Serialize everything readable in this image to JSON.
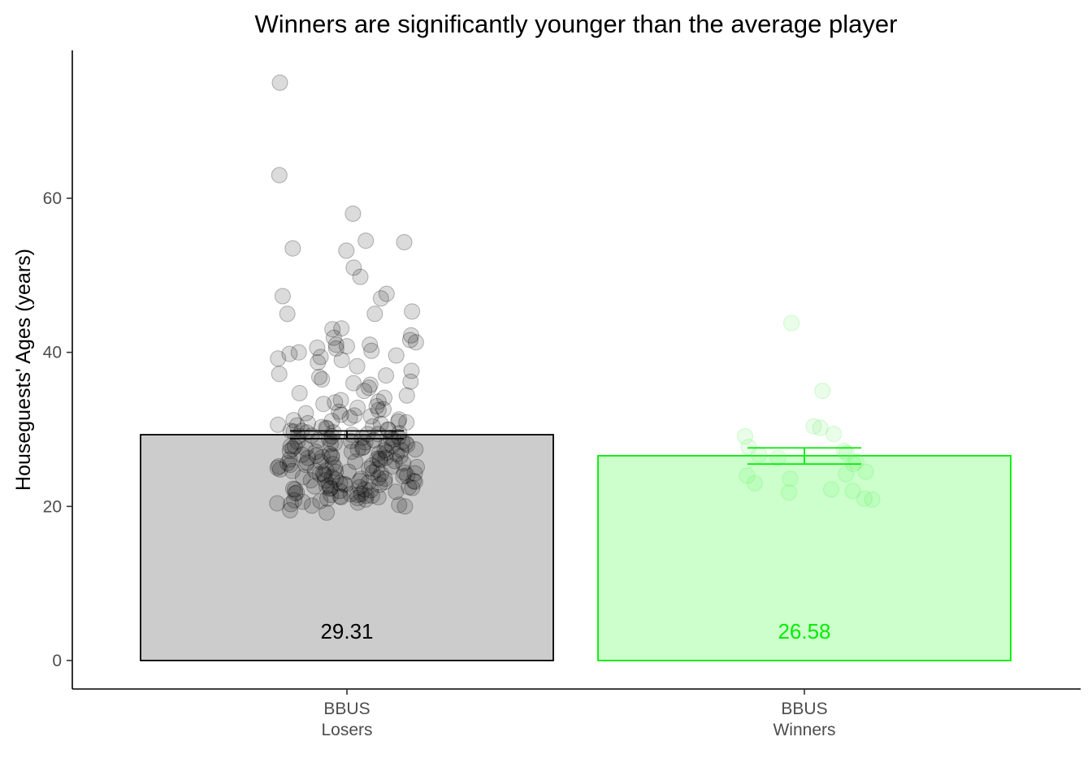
{
  "chart_data": {
    "type": "bar",
    "title": "Winners are significantly younger than the average player",
    "xlabel": "",
    "ylabel": "Houseguests' Ages (years)",
    "ylim": [
      -3.7,
      79.2
    ],
    "yticks": [
      0,
      20,
      40,
      60
    ],
    "grid": false,
    "legend": "none",
    "categories": [
      {
        "line1": "BBUS",
        "line2": "Losers"
      },
      {
        "line1": "BBUS",
        "line2": "Winners"
      }
    ],
    "bars": [
      {
        "value": 29.31,
        "label": "29.31",
        "error_low": 28.8,
        "error_high": 29.8,
        "fill": "#cccccc",
        "stroke": "#000000",
        "label_color": "#000000",
        "point_color": "#000000"
      },
      {
        "value": 26.58,
        "label": "26.58",
        "error_low": 25.5,
        "error_high": 27.6,
        "fill": "#ccffcc",
        "stroke": "#00ee00",
        "label_color": "#00ee00",
        "point_color": "#66ee66"
      }
    ],
    "points": [
      [
        75,
        63,
        58,
        54.5,
        54.3,
        53.5,
        53.2,
        51,
        49.8,
        47.6,
        47.3,
        47,
        45.3,
        45,
        45,
        43.1,
        43,
        42.2,
        41.9,
        41.6,
        41.3,
        41,
        41,
        40.8,
        40.6,
        40.5,
        40.2,
        40,
        39.8,
        39.6,
        39.4,
        39.2,
        39,
        38.7,
        38.2,
        37.6,
        37.2,
        37,
        36.8,
        36.5,
        36.2,
        36,
        35.8,
        35.4,
        35,
        34.7,
        34.4,
        34.1,
        33.8,
        33.6,
        33.3,
        33,
        32.8,
        32.6,
        32.3,
        32.1,
        31.9,
        31.7,
        31.5,
        31.3,
        31.1,
        30.9,
        30.7,
        30.5,
        30.4,
        30.2,
        30.1,
        30,
        29.9,
        29.8,
        29.7,
        29.6,
        29.5,
        29.4,
        29.3,
        29.2,
        29.1,
        29,
        28.9,
        28.8,
        28.7,
        28.6,
        28.5,
        28.4,
        28.3,
        28.2,
        28.1,
        28,
        27.9,
        27.8,
        27.7,
        27.6,
        27.5,
        27.4,
        27.3,
        27.2,
        27.1,
        27,
        26.9,
        26.8,
        26.7,
        26.6,
        26.5,
        26.4,
        26.3,
        26.2,
        26.1,
        26,
        25.9,
        25.8,
        25.7,
        25.6,
        25.5,
        25.4,
        25.3,
        25.2,
        25.1,
        25,
        24.9,
        24.8,
        24.7,
        24.6,
        24.5,
        24.4,
        24.3,
        24.2,
        24.1,
        24,
        23.9,
        23.8,
        23.7,
        23.6,
        23.5,
        23.4,
        23.3,
        23.2,
        23.1,
        23,
        22.9,
        22.8,
        22.7,
        22.6,
        22.5,
        22.4,
        22.3,
        22.2,
        22.1,
        22,
        21.9,
        21.8,
        21.7,
        21.6,
        21.5,
        21.4,
        21.3,
        21.2,
        21.1,
        21,
        20.9,
        20.8,
        20.7,
        20.6,
        20.5,
        20.4,
        20.3,
        20.2,
        20.1,
        20,
        19.5,
        19.2,
        31.8,
        30.6,
        29.6,
        28.4,
        27.3,
        26.3,
        25.2,
        24.3,
        23.3,
        22.3,
        21.4,
        32.5,
        31.2,
        29.8,
        28.9,
        27.8,
        26.6,
        25.6,
        24.6,
        23.6,
        22.6,
        21.6,
        30.3,
        28.2,
        26.2,
        24.2,
        22.2,
        29.4,
        27.4,
        25.4,
        23.4,
        21.5,
        31,
        28,
        25,
        22.5,
        33.5,
        30.8,
        27.5,
        24.8,
        22.8,
        26.8,
        25.8,
        24.5,
        23.8,
        22.4,
        29.1,
        27.1,
        23.2,
        21.2,
        28.6,
        26.4,
        24.4
      ],
      [
        43.8,
        35,
        30.4,
        30.2,
        29.4,
        29.1,
        27.7,
        27.2,
        26.9,
        26.7,
        26.3,
        25.8,
        25.5,
        24.5,
        24.2,
        24,
        23.6,
        23,
        22.2,
        22,
        21.8,
        21,
        20.9
      ]
    ]
  }
}
